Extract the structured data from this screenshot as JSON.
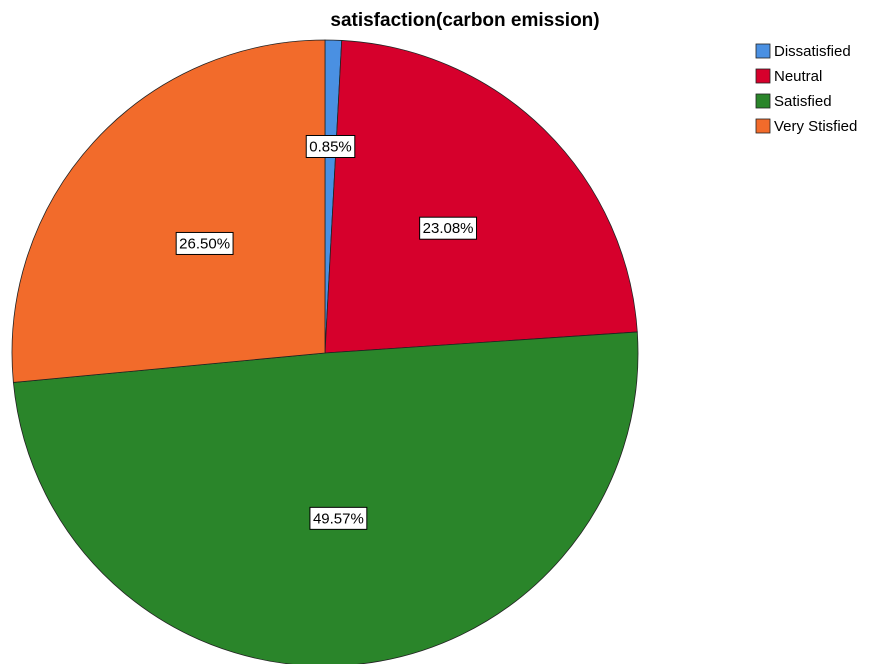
{
  "chart_data": {
    "type": "pie",
    "title": "satisfaction(carbon emission)",
    "slices": [
      {
        "label": "Dissatisfied",
        "value": 0.85,
        "display": "0.85%",
        "color": "#4a90e2"
      },
      {
        "label": "Neutral",
        "value": 23.08,
        "display": "23.08%",
        "color": "#d6002c"
      },
      {
        "label": "Satisfied",
        "value": 49.57,
        "display": "49.57%",
        "color": "#2a852a"
      },
      {
        "label": "Very Stisfied",
        "value": 26.5,
        "display": "26.50%",
        "color": "#f26b2b"
      }
    ],
    "legend_position": "top-right",
    "start_angle": "12 o'clock",
    "direction": "clockwise"
  }
}
